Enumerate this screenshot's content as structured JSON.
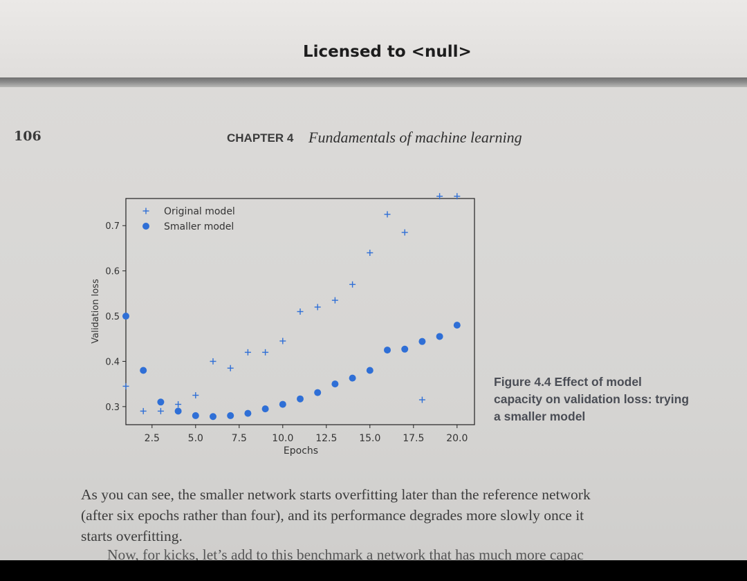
{
  "header": {
    "license_text": "Licensed to  <null>"
  },
  "page": {
    "number": "106",
    "chapter_label": "CHAPTER 4",
    "chapter_title": "Fundamentals of machine learning"
  },
  "colors": {
    "marker": "#2f6fd6",
    "axis": "#222222",
    "paper": "#d9d8d6"
  },
  "chart_data": {
    "type": "scatter",
    "title": "",
    "xlabel": "Epochs",
    "ylabel": "Validation loss",
    "xlim": [
      1.0,
      21.0
    ],
    "ylim": [
      0.26,
      0.76
    ],
    "xticks": [
      2.5,
      5.0,
      7.5,
      10.0,
      12.5,
      15.0,
      17.5,
      20.0
    ],
    "xtick_labels": [
      "2.5",
      "5.0",
      "7.5",
      "10.0",
      "12.5",
      "15.0",
      "17.5",
      "20.0"
    ],
    "yticks": [
      0.3,
      0.4,
      0.5,
      0.6,
      0.7
    ],
    "ytick_labels": [
      "0.3",
      "0.4",
      "0.5",
      "0.6",
      "0.7"
    ],
    "grid": false,
    "legend_position": "top-left",
    "series": [
      {
        "name": "Original model",
        "marker": "plus",
        "x": [
          1,
          2,
          3,
          4,
          5,
          6,
          7,
          8,
          9,
          10,
          11,
          12,
          13,
          14,
          15,
          16,
          17,
          18,
          19,
          20
        ],
        "y": [
          0.345,
          0.29,
          0.29,
          0.305,
          0.325,
          0.4,
          0.385,
          0.42,
          0.42,
          0.445,
          0.51,
          0.52,
          0.535,
          0.57,
          0.64,
          0.725,
          0.685,
          0.315,
          0.765,
          0.765
        ]
      },
      {
        "name": "Smaller model",
        "marker": "circle",
        "x": [
          1,
          2,
          3,
          4,
          5,
          6,
          7,
          8,
          9,
          10,
          11,
          12,
          13,
          14,
          15,
          16,
          17,
          18,
          19,
          20
        ],
        "y": [
          0.5,
          0.38,
          0.31,
          0.29,
          0.28,
          0.278,
          0.28,
          0.285,
          0.295,
          0.305,
          0.317,
          0.331,
          0.35,
          0.363,
          0.38,
          0.425,
          0.427,
          0.444,
          0.455,
          0.48
        ]
      }
    ]
  },
  "caption": {
    "line1": "Figure 4.4    Effect of model",
    "line2": "capacity on validation loss: trying",
    "line3": "a smaller model"
  },
  "body": {
    "line1": "As you can see, the smaller network starts overfitting later than the reference network",
    "line2": "(after six epochs rather than four), and its performance degrades more slowly once it",
    "line3": "starts overfitting.",
    "line4": "Now, for kicks, let’s add to this benchmark a network that has much more capac"
  }
}
